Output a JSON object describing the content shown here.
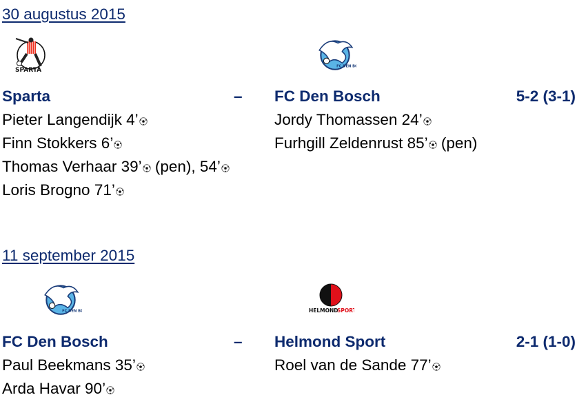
{
  "matches": [
    {
      "date": "30 augustus 2015",
      "home": {
        "name": "Sparta",
        "logo": "sparta-rotterdam-logo",
        "logo_text": "SPARTA"
      },
      "away": {
        "name": "FC Den Bosch",
        "logo": "fc-den-bosch-logo",
        "logo_text": "FC DEN BOSCH"
      },
      "separator": "–",
      "score": "5-2 (3-1)",
      "home_scorers": [
        [
          "Pieter Langendijk 4’"
        ],
        [
          "Finn Stokkers 6’"
        ],
        [
          "Thomas Verhaar 39’",
          " (pen), 54’"
        ],
        [
          "Loris Brogno 71’"
        ]
      ],
      "away_scorers": [
        [
          "Jordy Thomassen 24’"
        ],
        [
          "Furhgill Zeldenrust 85’",
          " (pen)"
        ]
      ]
    },
    {
      "date": "11 september 2015",
      "home": {
        "name": "FC Den Bosch",
        "logo": "fc-den-bosch-logo",
        "logo_text": "FC DEN BOSCH"
      },
      "away": {
        "name": "Helmond Sport",
        "logo": "helmond-sport-logo",
        "logo_text": "HELMOND SPORT"
      },
      "separator": "–",
      "score": "2-1 (1-0)",
      "home_scorers": [
        [
          "Paul Beekmans 35’"
        ],
        [
          "Arda Havar 90’"
        ]
      ],
      "away_scorers": [
        [
          "Roel van de Sande 77’"
        ]
      ]
    }
  ],
  "colors": {
    "team_text": "#0d2a6e",
    "body_text": "#000000"
  }
}
